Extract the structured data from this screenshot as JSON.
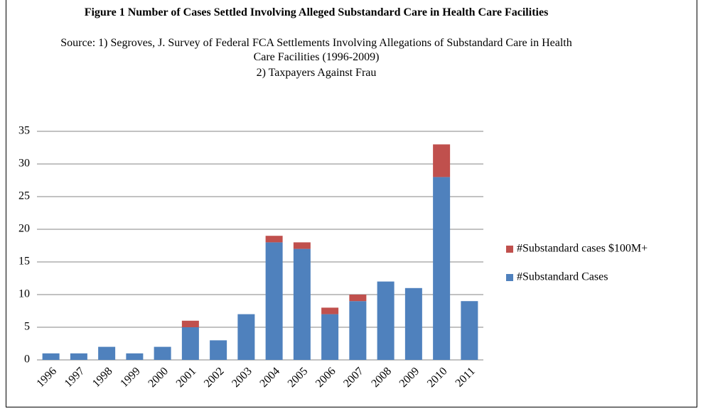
{
  "chart_data": {
    "type": "stacked_bar",
    "title": "Figure 1 Number of Cases Settled Involving Alleged Substandard Care in Health Care Facilities",
    "subtitle": [
      "Source: 1) Segroves, J. Survey of Federal FCA Settlements Involving Allegations of Substandard Care in Health Care Facilities (1996-2009)",
      "2) Taxpayers Against Frau"
    ],
    "categories": [
      "1996",
      "1997",
      "1998",
      "1999",
      "2000",
      "2001",
      "2002",
      "2003",
      "2004",
      "2005",
      "2006",
      "2007",
      "2008",
      "2009",
      "2010",
      "2011"
    ],
    "series": [
      {
        "name": "#Substandard Cases",
        "color": "#4f81bd",
        "values": [
          1,
          1,
          2,
          1,
          2,
          5,
          3,
          7,
          18,
          17,
          7,
          9,
          12,
          11,
          28,
          9
        ]
      },
      {
        "name": "#Substandard cases $100M+",
        "color": "#c0504d",
        "values": [
          0,
          0,
          0,
          0,
          0,
          1,
          0,
          0,
          1,
          1,
          1,
          1,
          0,
          0,
          5,
          0
        ]
      }
    ],
    "ylim": [
      0,
      35
    ],
    "yticks": [
      0,
      5,
      10,
      15,
      20,
      25,
      30,
      35
    ],
    "grid": true
  }
}
